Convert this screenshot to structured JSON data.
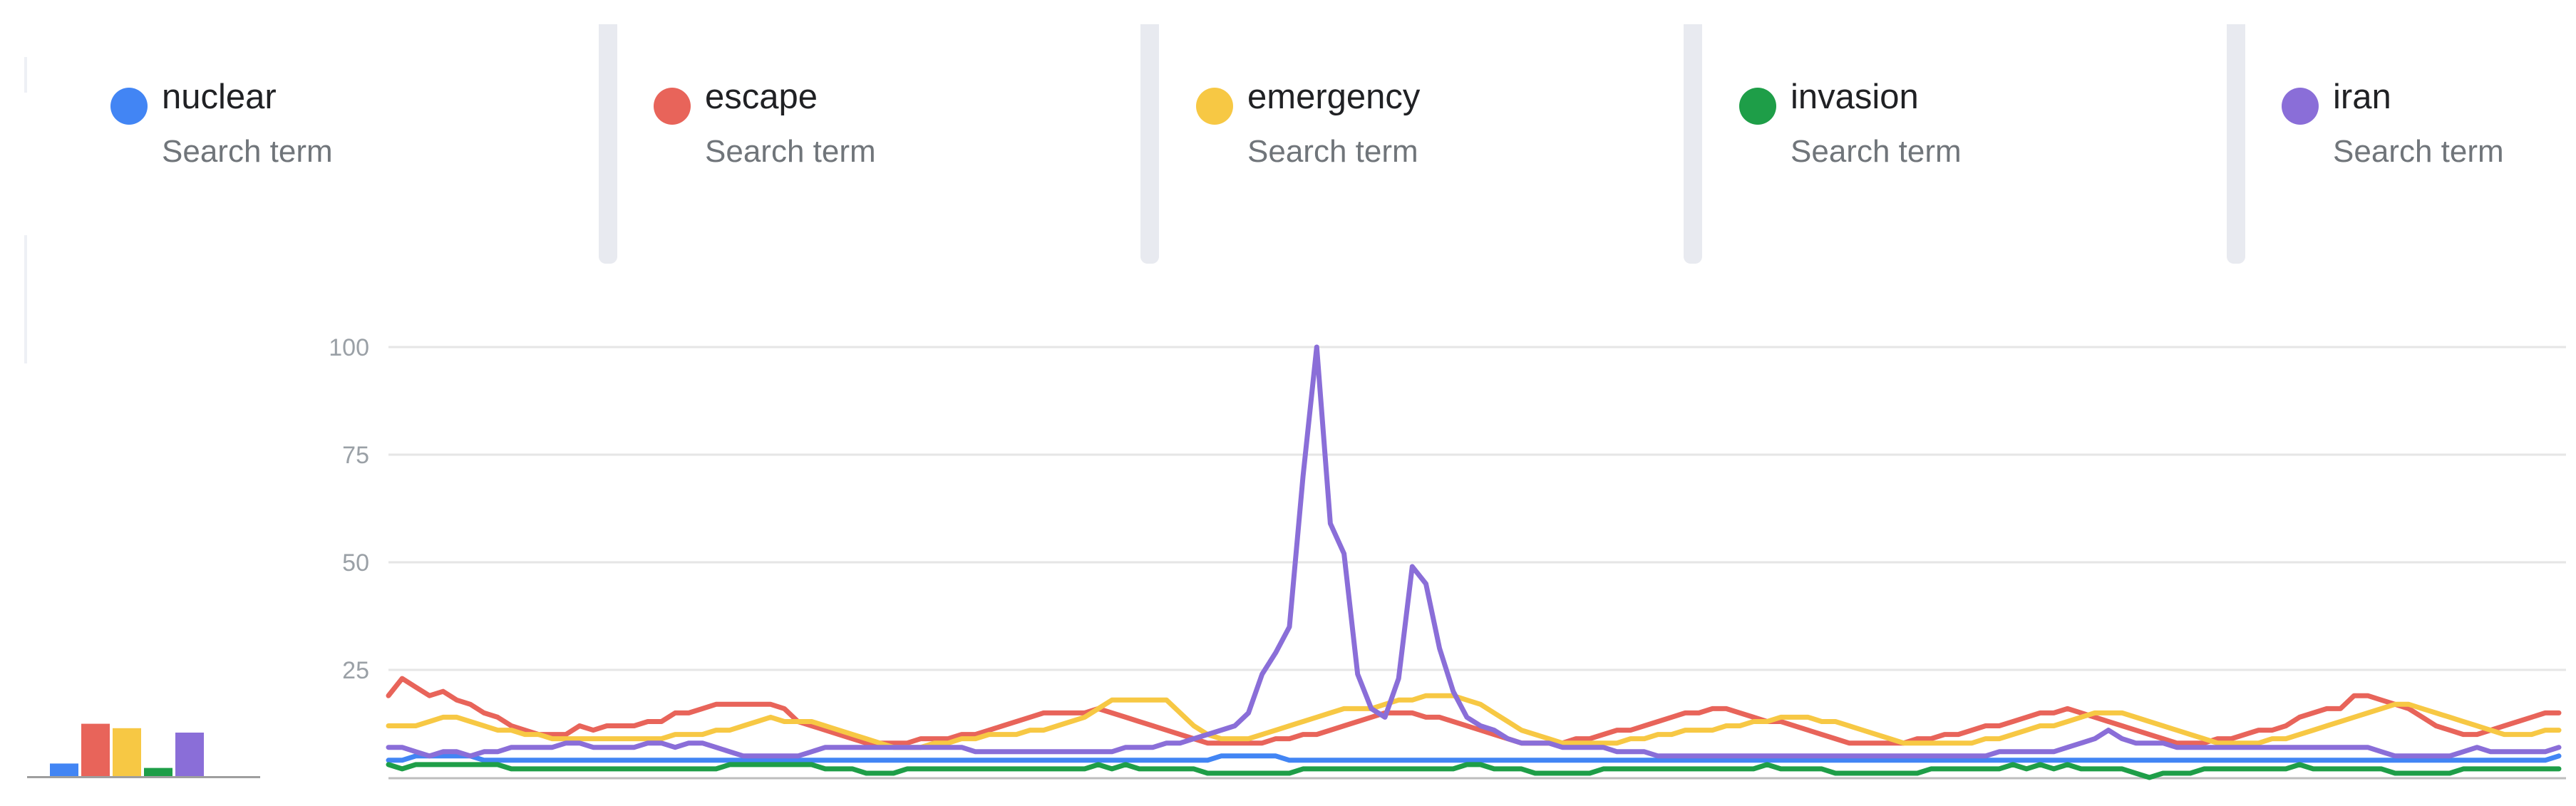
{
  "legend": [
    {
      "term": "nuclear",
      "subtitle": "Search term",
      "color": "#4285f4"
    },
    {
      "term": "escape",
      "subtitle": "Search term",
      "color": "#e8645a"
    },
    {
      "term": "emergency",
      "subtitle": "Search term",
      "color": "#f7c844"
    },
    {
      "term": "invasion",
      "subtitle": "Search term",
      "color": "#1e9e48"
    },
    {
      "term": "iran",
      "subtitle": "Search term",
      "color": "#8a6ed8"
    }
  ],
  "chart_data": [
    {
      "type": "bar",
      "title": "",
      "categories": [
        "nuclear",
        "escape",
        "emergency",
        "invasion",
        "iran"
      ],
      "values": [
        3,
        12,
        11,
        2,
        10
      ],
      "ylim": [
        0,
        100
      ],
      "colors": [
        "#4285f4",
        "#e8645a",
        "#f7c844",
        "#1e9e48",
        "#8a6ed8"
      ]
    },
    {
      "type": "line",
      "title": "",
      "xlabel": "",
      "ylabel": "",
      "ylim": [
        0,
        100
      ],
      "yticks": [
        "100",
        "75",
        "50",
        "25"
      ],
      "grid": true,
      "x_count": 160,
      "series": [
        {
          "name": "nuclear",
          "color": "#4285f4",
          "values": [
            4,
            4,
            5,
            5,
            5,
            5,
            5,
            4,
            4,
            4,
            4,
            4,
            4,
            4,
            4,
            4,
            4,
            4,
            4,
            4,
            4,
            4,
            4,
            4,
            4,
            4,
            4,
            4,
            4,
            4,
            4,
            4,
            4,
            4,
            4,
            4,
            4,
            4,
            4,
            4,
            4,
            4,
            4,
            4,
            4,
            4,
            4,
            4,
            4,
            4,
            4,
            4,
            4,
            4,
            4,
            4,
            4,
            4,
            4,
            4,
            4,
            5,
            5,
            5,
            5,
            5,
            4,
            4,
            4,
            4,
            4,
            4,
            4,
            4,
            4,
            4,
            4,
            4,
            4,
            4,
            4,
            4,
            4,
            4,
            4,
            4,
            4,
            4,
            4,
            4,
            4,
            4,
            4,
            4,
            4,
            4,
            4,
            4,
            4,
            4,
            4,
            4,
            4,
            4,
            4,
            4,
            4,
            4,
            4,
            4,
            4,
            4,
            4,
            4,
            4,
            4,
            4,
            4,
            4,
            4,
            4,
            4,
            4,
            4,
            4,
            4,
            4,
            4,
            4,
            4,
            4,
            4,
            4,
            4,
            4,
            4,
            4,
            4,
            4,
            4,
            4,
            4,
            4,
            4,
            4,
            4,
            4,
            4,
            4,
            4,
            4,
            4,
            4,
            4,
            4,
            4,
            4,
            4,
            4,
            5
          ]
        },
        {
          "name": "escape",
          "color": "#e8645a",
          "values": [
            19,
            23,
            21,
            19,
            20,
            18,
            17,
            15,
            14,
            12,
            11,
            10,
            10,
            10,
            12,
            11,
            12,
            12,
            12,
            13,
            13,
            15,
            15,
            16,
            17,
            17,
            17,
            17,
            17,
            16,
            13,
            12,
            11,
            10,
            9,
            8,
            8,
            8,
            8,
            9,
            9,
            9,
            10,
            10,
            11,
            12,
            13,
            14,
            15,
            15,
            15,
            15,
            16,
            15,
            14,
            13,
            12,
            11,
            10,
            9,
            8,
            8,
            8,
            8,
            8,
            9,
            9,
            10,
            10,
            11,
            12,
            13,
            14,
            15,
            15,
            15,
            14,
            14,
            13,
            12,
            11,
            10,
            9,
            8,
            8,
            8,
            8,
            9,
            9,
            10,
            11,
            11,
            12,
            13,
            14,
            15,
            15,
            16,
            16,
            15,
            14,
            13,
            13,
            12,
            11,
            10,
            9,
            8,
            8,
            8,
            8,
            8,
            9,
            9,
            10,
            10,
            11,
            12,
            12,
            13,
            14,
            15,
            15,
            16,
            15,
            14,
            13,
            12,
            11,
            10,
            9,
            8,
            8,
            8,
            9,
            9,
            10,
            11,
            11,
            12,
            14,
            15,
            16,
            16,
            19,
            19,
            18,
            17,
            16,
            14,
            12,
            11,
            10,
            10,
            11,
            12,
            13,
            14,
            15,
            15
          ]
        },
        {
          "name": "emergency",
          "color": "#f7c844",
          "values": [
            12,
            12,
            12,
            13,
            14,
            14,
            13,
            12,
            11,
            11,
            10,
            10,
            9,
            9,
            9,
            9,
            9,
            9,
            9,
            9,
            9,
            10,
            10,
            10,
            11,
            11,
            12,
            13,
            14,
            13,
            13,
            13,
            12,
            11,
            10,
            9,
            8,
            7,
            7,
            7,
            8,
            8,
            9,
            9,
            10,
            10,
            10,
            11,
            11,
            12,
            13,
            14,
            16,
            18,
            18,
            18,
            18,
            18,
            15,
            12,
            10,
            9,
            9,
            9,
            10,
            11,
            12,
            13,
            14,
            15,
            16,
            16,
            16,
            17,
            18,
            18,
            19,
            19,
            19,
            18,
            17,
            15,
            13,
            11,
            10,
            9,
            8,
            8,
            8,
            8,
            8,
            9,
            9,
            10,
            10,
            11,
            11,
            11,
            12,
            12,
            13,
            13,
            14,
            14,
            14,
            13,
            13,
            12,
            11,
            10,
            9,
            8,
            8,
            8,
            8,
            8,
            8,
            9,
            9,
            10,
            11,
            12,
            12,
            13,
            14,
            15,
            15,
            15,
            14,
            13,
            12,
            11,
            10,
            9,
            8,
            8,
            8,
            8,
            9,
            9,
            10,
            11,
            12,
            13,
            14,
            15,
            16,
            17,
            17,
            16,
            15,
            14,
            13,
            12,
            11,
            10,
            10,
            10,
            11,
            11
          ]
        },
        {
          "name": "invasion",
          "color": "#1e9e48",
          "values": [
            3,
            2,
            3,
            3,
            3,
            3,
            3,
            3,
            3,
            2,
            2,
            2,
            2,
            2,
            2,
            2,
            2,
            2,
            2,
            2,
            2,
            2,
            2,
            2,
            2,
            3,
            3,
            3,
            3,
            3,
            3,
            3,
            2,
            2,
            2,
            1,
            1,
            1,
            2,
            2,
            2,
            2,
            2,
            2,
            2,
            2,
            2,
            2,
            2,
            2,
            2,
            2,
            3,
            2,
            3,
            2,
            2,
            2,
            2,
            2,
            1,
            1,
            1,
            1,
            1,
            1,
            1,
            2,
            2,
            2,
            2,
            2,
            2,
            2,
            2,
            2,
            2,
            2,
            2,
            3,
            3,
            2,
            2,
            2,
            1,
            1,
            1,
            1,
            1,
            2,
            2,
            2,
            2,
            2,
            2,
            2,
            2,
            2,
            2,
            2,
            2,
            3,
            2,
            2,
            2,
            2,
            1,
            1,
            1,
            1,
            1,
            1,
            1,
            2,
            2,
            2,
            2,
            2,
            2,
            3,
            2,
            3,
            2,
            3,
            2,
            2,
            2,
            2,
            1,
            0,
            1,
            1,
            1,
            2,
            2,
            2,
            2,
            2,
            2,
            2,
            3,
            2,
            2,
            2,
            2,
            2,
            2,
            1,
            1,
            1,
            1,
            1,
            2,
            2,
            2,
            2,
            2,
            2,
            2,
            2
          ]
        },
        {
          "name": "iran",
          "color": "#8a6ed8",
          "values": [
            7,
            7,
            6,
            5,
            6,
            6,
            5,
            6,
            6,
            7,
            7,
            7,
            7,
            8,
            8,
            7,
            7,
            7,
            7,
            8,
            8,
            7,
            8,
            8,
            7,
            6,
            5,
            5,
            5,
            5,
            5,
            6,
            7,
            7,
            7,
            7,
            7,
            7,
            7,
            7,
            7,
            7,
            7,
            6,
            6,
            6,
            6,
            6,
            6,
            6,
            6,
            6,
            6,
            6,
            7,
            7,
            7,
            8,
            8,
            9,
            10,
            11,
            12,
            15,
            24,
            29,
            35,
            70,
            100,
            59,
            52,
            24,
            16,
            14,
            23,
            49,
            45,
            30,
            20,
            14,
            12,
            11,
            9,
            8,
            8,
            8,
            7,
            7,
            7,
            7,
            6,
            6,
            6,
            5,
            5,
            5,
            5,
            5,
            5,
            5,
            5,
            5,
            5,
            5,
            5,
            5,
            5,
            5,
            5,
            5,
            5,
            5,
            5,
            5,
            5,
            5,
            5,
            5,
            6,
            6,
            6,
            6,
            6,
            7,
            8,
            9,
            11,
            9,
            8,
            8,
            8,
            7,
            7,
            7,
            7,
            7,
            7,
            7,
            7,
            7,
            7,
            7,
            7,
            7,
            7,
            7,
            6,
            5,
            5,
            5,
            5,
            5,
            6,
            7,
            6,
            6,
            6,
            6,
            6,
            7
          ]
        }
      ]
    }
  ]
}
